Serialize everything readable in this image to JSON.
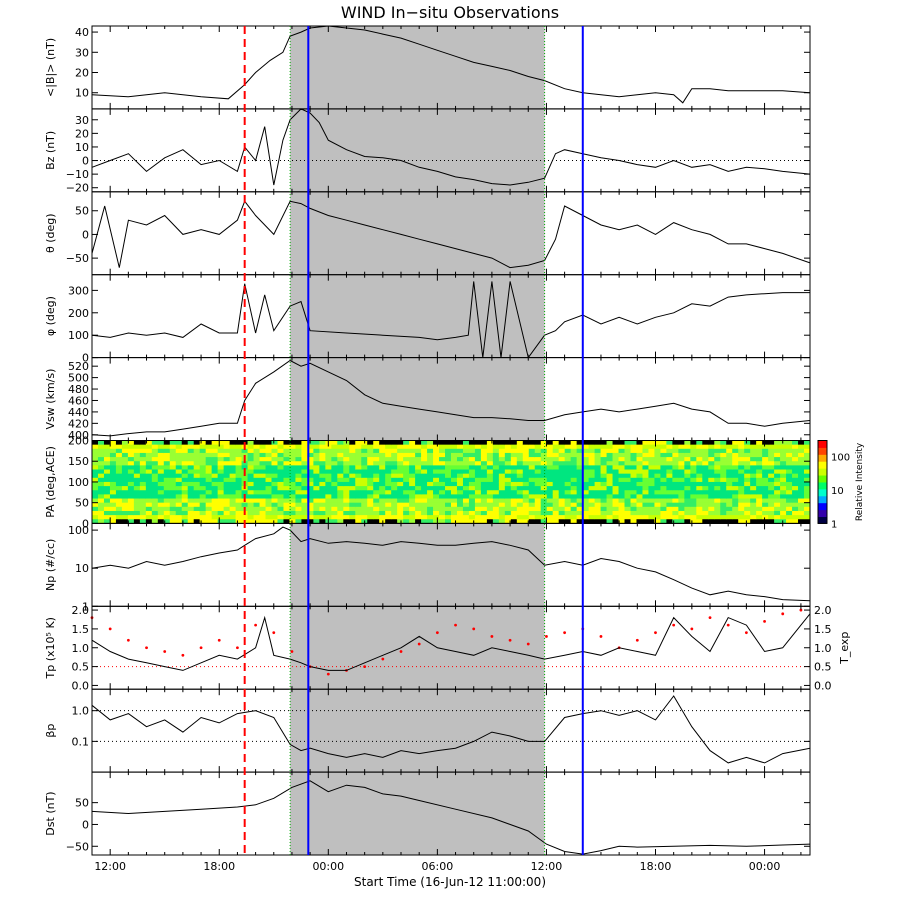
{
  "title": "WIND In−situ Observations",
  "xaxis": {
    "label": "Start Time (16-Jun-12 11:00:00)",
    "ticks": [
      {
        "hour": 1,
        "label": "12:00"
      },
      {
        "hour": 7,
        "label": "18:00"
      },
      {
        "hour": 13,
        "label": "00:00"
      },
      {
        "hour": 19,
        "label": "06:00"
      },
      {
        "hour": 25,
        "label": "12:00"
      },
      {
        "hour": 31,
        "label": "18:00"
      },
      {
        "hour": 37,
        "label": "00:00"
      }
    ],
    "range_hours": [
      0,
      39.5
    ]
  },
  "colors": {
    "shade": "#bfbfbf",
    "shock_line": "#ff0000",
    "boundary_line": "#00aa00",
    "blue_line": "#0000ff",
    "texp_red": "#ff0000"
  },
  "colorbar": {
    "label": "Relative Intensity",
    "ticks": [
      "1",
      "10",
      "100"
    ]
  },
  "chart_data": {
    "type": "line",
    "title": "WIND In−situ Observations",
    "start_time": "16-Jun-12 11:00:00",
    "events": {
      "shock_hour": 8.4,
      "cme_start_hour": 10.9,
      "cme_end_hour": 24.9,
      "blue_lines_hours": [
        11.9,
        27.0
      ]
    },
    "panels": [
      {
        "key": "B",
        "ylabel": "<|B|> (nT)",
        "ticks": [
          "10",
          "20",
          "30",
          "40"
        ],
        "tick_values": [
          10,
          20,
          30,
          40
        ],
        "ylim": [
          2,
          43
        ],
        "scale": "linear",
        "x": [
          0,
          2,
          4,
          6,
          7.5,
          8.4,
          9,
          9.8,
          10.5,
          10.9,
          11.5,
          12,
          13,
          14,
          15,
          16,
          17,
          18,
          19,
          20,
          21,
          22,
          23,
          24,
          24.9,
          26,
          27,
          28,
          29,
          30,
          31,
          32,
          32.5,
          33,
          34,
          35,
          36,
          37,
          38,
          39.5
        ],
        "y": [
          9,
          8,
          10,
          8,
          7,
          14,
          20,
          26,
          30,
          38,
          40,
          42,
          43,
          42,
          41,
          39,
          37,
          34,
          31,
          28,
          25,
          23,
          21,
          18,
          16,
          12,
          10,
          9,
          8,
          9,
          10,
          9,
          5,
          12,
          12,
          11,
          11,
          11,
          11,
          10
        ]
      },
      {
        "key": "Bz",
        "ylabel": "Bz (nT)",
        "ticks": [
          "−20",
          "−10",
          "0",
          "10",
          "20",
          "30"
        ],
        "tick_values": [
          -20,
          -10,
          0,
          10,
          20,
          30
        ],
        "ylim": [
          -23,
          38
        ],
        "scale": "linear",
        "refline": 0,
        "x": [
          0,
          1,
          2,
          3,
          4,
          5,
          6,
          7,
          8,
          8.4,
          9,
          9.5,
          10,
          10.5,
          10.9,
          11.5,
          12,
          12.5,
          13,
          14,
          15,
          16,
          17,
          18,
          19,
          20,
          21,
          22,
          23,
          24,
          24.9,
          25.5,
          26,
          27,
          28,
          29,
          30,
          31,
          32,
          33,
          34,
          35,
          36,
          37,
          38,
          39.5
        ],
        "y": [
          -5,
          0,
          5,
          -8,
          2,
          8,
          -3,
          0,
          -8,
          10,
          0,
          25,
          -18,
          15,
          30,
          38,
          35,
          28,
          15,
          8,
          3,
          2,
          0,
          -5,
          -8,
          -12,
          -14,
          -17,
          -18,
          -16,
          -13,
          5,
          8,
          5,
          2,
          0,
          -3,
          -5,
          0,
          -5,
          -3,
          -8,
          -5,
          -6,
          -8,
          -10
        ]
      },
      {
        "key": "theta",
        "ylabel": "θ (deg)",
        "ticks": [
          "−50",
          "0",
          "50"
        ],
        "tick_values": [
          -50,
          0,
          50
        ],
        "ylim": [
          -85,
          90
        ],
        "scale": "linear",
        "x": [
          0,
          0.7,
          1.5,
          2,
          3,
          4,
          5,
          6,
          7,
          8,
          8.4,
          9,
          10,
          10.9,
          11.5,
          12,
          13,
          14,
          15,
          16,
          17,
          18,
          19,
          20,
          21,
          22,
          23,
          24,
          24.9,
          25.5,
          26,
          27,
          28,
          29,
          30,
          31,
          32,
          33,
          34,
          35,
          36,
          37,
          38,
          39.5
        ],
        "y": [
          -40,
          60,
          -70,
          30,
          20,
          40,
          0,
          10,
          0,
          30,
          70,
          40,
          0,
          70,
          65,
          55,
          40,
          30,
          20,
          10,
          0,
          -10,
          -20,
          -30,
          -40,
          -50,
          -70,
          -65,
          -55,
          -10,
          60,
          40,
          20,
          10,
          20,
          0,
          25,
          10,
          0,
          -20,
          -20,
          -30,
          -40,
          -60
        ]
      },
      {
        "key": "phi",
        "ylabel": "φ (deg)",
        "ticks": [
          "0",
          "100",
          "200",
          "300"
        ],
        "tick_values": [
          0,
          100,
          200,
          300
        ],
        "ylim": [
          0,
          370
        ],
        "scale": "linear",
        "x": [
          0,
          1,
          2,
          3,
          4,
          5,
          6,
          7,
          8,
          8.4,
          9,
          9.5,
          10,
          10.9,
          11.5,
          12,
          14,
          16,
          18,
          19,
          20,
          20.7,
          21,
          21.5,
          22,
          22.5,
          23,
          24,
          24.9,
          25.5,
          26,
          27,
          28,
          29,
          30,
          31,
          32,
          33,
          34,
          35,
          36,
          37,
          38,
          39.5
        ],
        "y": [
          100,
          90,
          110,
          100,
          110,
          90,
          150,
          110,
          110,
          330,
          110,
          280,
          120,
          230,
          250,
          120,
          110,
          100,
          90,
          80,
          90,
          100,
          340,
          0,
          340,
          0,
          340,
          0,
          100,
          120,
          160,
          190,
          150,
          180,
          150,
          180,
          200,
          240,
          230,
          270,
          280,
          285,
          290,
          290
        ]
      },
      {
        "key": "Vsw",
        "ylabel": "Vsw (km/s)",
        "ticks": [
          "400",
          "420",
          "440",
          "460",
          "480",
          "500",
          "520"
        ],
        "tick_values": [
          400,
          420,
          440,
          460,
          480,
          500,
          520
        ],
        "ylim": [
          390,
          535
        ],
        "scale": "linear",
        "x": [
          0,
          1,
          2,
          3,
          4,
          5,
          6,
          7,
          8,
          8.4,
          9,
          10,
          10.9,
          11.5,
          12,
          13,
          14,
          15,
          16,
          17,
          18,
          19,
          20,
          21,
          22,
          23,
          24,
          24.9,
          26,
          27,
          28,
          29,
          30,
          31,
          32,
          33,
          34,
          35,
          36,
          37,
          38,
          39.5
        ],
        "y": [
          400,
          398,
          402,
          405,
          405,
          410,
          415,
          420,
          420,
          460,
          490,
          510,
          530,
          520,
          525,
          510,
          495,
          470,
          455,
          450,
          445,
          440,
          435,
          430,
          430,
          428,
          425,
          425,
          435,
          440,
          445,
          440,
          445,
          450,
          455,
          445,
          440,
          420,
          420,
          415,
          420,
          425
        ]
      },
      {
        "key": "PA",
        "ylabel": "PA (deg,ACE)",
        "ticks": [
          "0",
          "50",
          "100",
          "150",
          "200"
        ],
        "tick_values": [
          0,
          50,
          100,
          150,
          200
        ],
        "ylim": [
          0,
          200
        ],
        "scale": "linear",
        "type": "heatmap"
      },
      {
        "key": "Np",
        "ylabel": "Np (#/cc)",
        "ticks": [
          "1",
          "10",
          "100"
        ],
        "tick_values": [
          1,
          10,
          100
        ],
        "ylim": [
          1,
          150
        ],
        "scale": "log",
        "x": [
          0,
          1,
          2,
          3,
          4,
          5,
          6,
          7,
          8,
          8.4,
          9,
          10,
          10.5,
          10.9,
          11.5,
          12,
          13,
          14,
          15,
          16,
          17,
          18,
          19,
          20,
          21,
          22,
          23,
          24,
          24.9,
          26,
          27,
          28,
          29,
          30,
          31,
          32,
          33,
          34,
          35,
          36,
          37,
          38,
          39.5
        ],
        "y": [
          10,
          12,
          10,
          15,
          12,
          15,
          20,
          25,
          30,
          40,
          60,
          80,
          120,
          100,
          50,
          60,
          45,
          50,
          45,
          40,
          50,
          45,
          40,
          40,
          45,
          50,
          40,
          30,
          12,
          15,
          12,
          18,
          15,
          10,
          8,
          5,
          3,
          2,
          2.5,
          2,
          1.8,
          1.5,
          1.4
        ]
      },
      {
        "key": "Tp",
        "ylabel": "Tp (x10⁵ K)",
        "ticks": [
          "0.0",
          "0.5",
          "1.0",
          "1.5",
          "2.0"
        ],
        "tick_values": [
          0,
          0.5,
          1.0,
          1.5,
          2.0
        ],
        "ylim": [
          -0.1,
          2.1
        ],
        "scale": "linear",
        "refline": 0.5,
        "right_axis": {
          "label": "T_exp",
          "ticks": [
            "0.0",
            "0.5",
            "1.0",
            "1.5",
            "2.0"
          ],
          "tick_values": [
            0,
            0.5,
            1.0,
            1.5,
            2.0
          ]
        },
        "x": [
          0,
          1,
          2,
          3,
          4,
          5,
          6,
          7,
          8,
          9,
          9.5,
          10,
          10.9,
          11.5,
          12,
          13,
          14,
          15,
          16,
          17,
          18,
          19,
          20,
          21,
          22,
          23,
          24,
          24.9,
          26,
          27,
          28,
          29,
          30,
          31,
          32,
          33,
          34,
          35,
          36,
          37,
          38,
          39.5
        ],
        "y": [
          1.2,
          0.9,
          0.7,
          0.6,
          0.5,
          0.4,
          0.6,
          0.8,
          0.7,
          1.0,
          1.8,
          0.8,
          0.7,
          0.6,
          0.5,
          0.4,
          0.4,
          0.6,
          0.8,
          1.0,
          1.3,
          1.0,
          0.9,
          0.8,
          1.0,
          0.9,
          0.8,
          0.7,
          0.8,
          0.9,
          0.8,
          1.0,
          0.9,
          0.8,
          1.8,
          1.3,
          0.9,
          1.8,
          1.6,
          0.9,
          1.0,
          1.9
        ],
        "texp_x": [
          0,
          1,
          2,
          3,
          4,
          5,
          6,
          7,
          8,
          9,
          10,
          11,
          12,
          13,
          14,
          15,
          16,
          17,
          18,
          19,
          20,
          21,
          22,
          23,
          24,
          25,
          26,
          27,
          28,
          29,
          30,
          31,
          32,
          33,
          34,
          35,
          36,
          37,
          38,
          39
        ],
        "texp_y": [
          1.8,
          1.5,
          1.2,
          1.0,
          0.9,
          0.8,
          1.0,
          1.2,
          1.0,
          1.6,
          1.4,
          0.9,
          0.5,
          0.3,
          0.4,
          0.5,
          0.7,
          0.9,
          1.1,
          1.4,
          1.6,
          1.5,
          1.3,
          1.2,
          1.1,
          1.3,
          1.4,
          1.5,
          1.3,
          1.0,
          1.2,
          1.4,
          1.6,
          1.5,
          1.8,
          1.6,
          1.4,
          1.7,
          1.9,
          2.0
        ]
      },
      {
        "key": "beta",
        "ylabel": "βp",
        "ticks": [
          "0.1",
          "1.0"
        ],
        "tick_values": [
          0.1,
          1.0
        ],
        "ylim": [
          0.01,
          5
        ],
        "scale": "log",
        "reflines": [
          0.1,
          1.0
        ],
        "x": [
          0,
          1,
          2,
          3,
          4,
          5,
          6,
          7,
          8,
          9,
          10,
          10.9,
          11.5,
          12,
          13,
          14,
          15,
          16,
          17,
          18,
          19,
          20,
          21,
          22,
          23,
          24,
          24.9,
          26,
          27,
          28,
          29,
          30,
          31,
          32,
          33,
          34,
          35,
          36,
          37,
          38,
          39.5
        ],
        "y": [
          1.5,
          0.5,
          0.8,
          0.3,
          0.5,
          0.2,
          0.6,
          0.4,
          0.8,
          1.0,
          0.6,
          0.08,
          0.05,
          0.06,
          0.04,
          0.03,
          0.04,
          0.03,
          0.05,
          0.04,
          0.05,
          0.06,
          0.1,
          0.2,
          0.15,
          0.1,
          0.1,
          0.6,
          0.8,
          1.0,
          0.7,
          1.0,
          0.5,
          3.0,
          0.3,
          0.05,
          0.02,
          0.03,
          0.02,
          0.04,
          0.06
        ]
      },
      {
        "key": "Dst",
        "ylabel": "Dst (nT)",
        "ticks": [
          "−50",
          "0",
          "50"
        ],
        "tick_values": [
          -50,
          0,
          50
        ],
        "ylim": [
          -70,
          120
        ],
        "scale": "linear",
        "x": [
          0,
          2,
          4,
          6,
          8,
          9,
          10,
          11,
          12,
          13,
          14,
          15,
          16,
          17,
          18,
          20,
          22,
          24,
          25,
          26,
          27,
          28,
          29,
          30,
          32,
          34,
          36,
          38,
          39.5
        ],
        "y": [
          30,
          25,
          30,
          35,
          40,
          45,
          60,
          85,
          100,
          75,
          90,
          85,
          70,
          65,
          55,
          35,
          15,
          -15,
          -45,
          -62,
          -68,
          -60,
          -50,
          -52,
          -50,
          -48,
          -50,
          -47,
          -45
        ]
      }
    ]
  }
}
